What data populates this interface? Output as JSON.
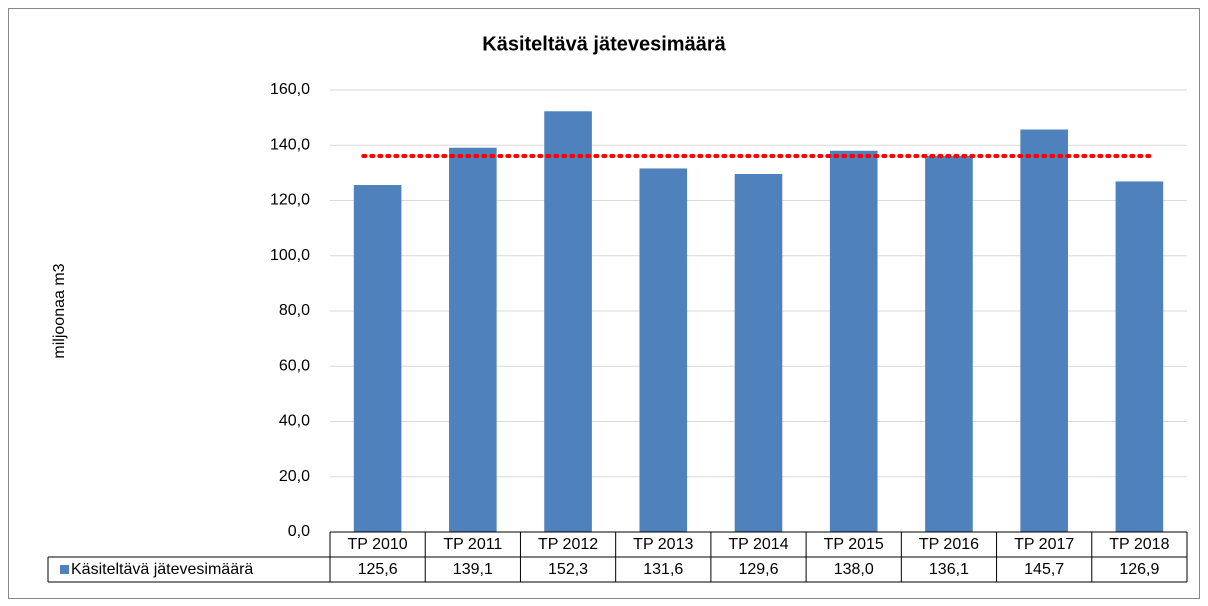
{
  "chart_data": {
    "type": "bar",
    "title": "Käsiteltävä jätevesimäärä",
    "y_label": "miljoonaa m3",
    "categories": [
      "TP 2010",
      "TP 2011",
      "TP 2012",
      "TP 2013",
      "TP 2014",
      "TP 2015",
      "TP 2016",
      "TP 2017",
      "TP 2018"
    ],
    "series": [
      {
        "name": "Käsiteltävä jätevesimäärä",
        "color": "#4f81bd",
        "values": [
          125.6,
          139.1,
          152.3,
          131.6,
          129.6,
          138.0,
          136.1,
          145.7,
          126.9
        ],
        "value_labels": [
          "125,6",
          "139,1",
          "152,3",
          "131,6",
          "129,6",
          "138,0",
          "136,1",
          "145,7",
          "126,9"
        ]
      }
    ],
    "reference_line": {
      "value": 136.1,
      "color": "#ff0000"
    },
    "ylim": [
      0,
      160
    ],
    "yticks": [
      {
        "value": 0,
        "label": "0,0"
      },
      {
        "value": 20,
        "label": "20,0"
      },
      {
        "value": 40,
        "label": "40,0"
      },
      {
        "value": 60,
        "label": "60,0"
      },
      {
        "value": 80,
        "label": "80,0"
      },
      {
        "value": 100,
        "label": "100,0"
      },
      {
        "value": 120,
        "label": "120,0"
      },
      {
        "value": 140,
        "label": "140,0"
      },
      {
        "value": 160,
        "label": "160,0"
      }
    ],
    "grid": true
  }
}
